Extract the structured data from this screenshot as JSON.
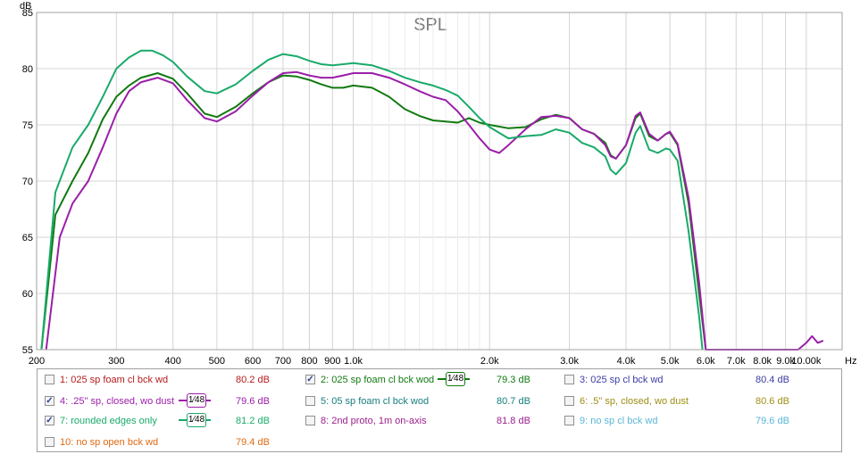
{
  "chart_data": {
    "type": "line",
    "title": "SPL",
    "ylabel": "dB",
    "xlabel": "Hz",
    "x_scale": "log",
    "xlim": [
      200,
      12000
    ],
    "ylim": [
      55,
      85
    ],
    "grid": true,
    "y_ticks": [
      55,
      60,
      65,
      70,
      75,
      80,
      85
    ],
    "x_ticks": [
      {
        "v": 200,
        "label": "200"
      },
      {
        "v": 300,
        "label": "300"
      },
      {
        "v": 400,
        "label": "400"
      },
      {
        "v": 500,
        "label": "500"
      },
      {
        "v": 600,
        "label": "600"
      },
      {
        "v": 700,
        "label": "700"
      },
      {
        "v": 800,
        "label": "800"
      },
      {
        "v": 900,
        "label": "900"
      },
      {
        "v": 1000,
        "label": "1.0k"
      },
      {
        "v": 2000,
        "label": "2.0k"
      },
      {
        "v": 3000,
        "label": "3.0k"
      },
      {
        "v": 4000,
        "label": "4.0k"
      },
      {
        "v": 5000,
        "label": "5.0k"
      },
      {
        "v": 6000,
        "label": "6.0k"
      },
      {
        "v": 7000,
        "label": "7.0k"
      },
      {
        "v": 8000,
        "label": "8.0k"
      },
      {
        "v": 9000,
        "label": "9.0k"
      },
      {
        "v": 10000,
        "label": "10.00k"
      }
    ],
    "series": [
      {
        "name": "2: 025 sp foam cl bck wod",
        "color": "#117a11",
        "x": [
          205,
          220,
          240,
          260,
          280,
          300,
          320,
          340,
          370,
          400,
          430,
          470,
          500,
          550,
          600,
          650,
          700,
          750,
          800,
          850,
          900,
          950,
          1000,
          1100,
          1200,
          1300,
          1400,
          1500,
          1600,
          1700,
          1800,
          1900,
          2000,
          2200,
          2400,
          2600,
          2800,
          3000,
          3200,
          3400,
          3600,
          3700,
          3800,
          4000,
          4200,
          4300,
          4500,
          4700,
          4900,
          5000,
          5200,
          5500,
          5800,
          6000
        ],
        "y": [
          55,
          67,
          70,
          72.5,
          75.5,
          77.5,
          78.5,
          79.2,
          79.6,
          79.1,
          77.8,
          76,
          75.7,
          76.6,
          77.8,
          78.8,
          79.4,
          79.3,
          79,
          78.6,
          78.3,
          78.3,
          78.5,
          78.3,
          77.5,
          76.4,
          75.8,
          75.4,
          75.3,
          75.2,
          75.6,
          75.2,
          75,
          74.7,
          74.8,
          75.5,
          75.9,
          75.6,
          74.6,
          74.2,
          73.4,
          72.3,
          72,
          73.2,
          75.6,
          76,
          74,
          73.6,
          74.2,
          74.3,
          73.2,
          68,
          60,
          55
        ]
      },
      {
        "name": "4: .25\" sp, closed, wo dust",
        "color": "#9b1ea8",
        "x": [
          210,
          225,
          240,
          260,
          280,
          300,
          320,
          340,
          370,
          400,
          430,
          470,
          500,
          550,
          600,
          650,
          700,
          750,
          800,
          850,
          900,
          950,
          1000,
          1100,
          1200,
          1300,
          1400,
          1500,
          1600,
          1700,
          1800,
          1900,
          2000,
          2100,
          2200,
          2400,
          2600,
          2800,
          3000,
          3200,
          3400,
          3600,
          3700,
          3800,
          4000,
          4200,
          4300,
          4500,
          4700,
          4900,
          5000,
          5200,
          5500,
          5800,
          6000,
          9600,
          10000,
          10300,
          10600,
          10900
        ],
        "y": [
          55,
          65,
          68,
          70,
          73,
          76,
          78,
          78.8,
          79.2,
          78.7,
          77.2,
          75.6,
          75.3,
          76.2,
          77.6,
          78.8,
          79.6,
          79.7,
          79.4,
          79.2,
          79.2,
          79.4,
          79.6,
          79.6,
          79.2,
          78.6,
          78,
          77.5,
          77.2,
          76.2,
          75,
          73.8,
          72.8,
          72.5,
          73.2,
          74.6,
          75.7,
          75.8,
          75.6,
          74.6,
          74.2,
          73.2,
          72.2,
          72,
          73.2,
          75.8,
          76.1,
          74.2,
          73.6,
          74.2,
          74.4,
          73.3,
          68.5,
          61,
          55,
          55,
          55.6,
          56.2,
          55.6,
          55.8
        ]
      },
      {
        "name": "7: rounded edges only",
        "color": "#19aa6a",
        "x": [
          205,
          220,
          240,
          260,
          280,
          300,
          320,
          340,
          360,
          380,
          400,
          430,
          470,
          500,
          550,
          600,
          650,
          700,
          750,
          800,
          850,
          900,
          950,
          1000,
          1100,
          1200,
          1300,
          1400,
          1500,
          1600,
          1700,
          1800,
          1900,
          2000,
          2200,
          2400,
          2600,
          2800,
          3000,
          3200,
          3400,
          3600,
          3700,
          3800,
          4000,
          4200,
          4300,
          4500,
          4700,
          4900,
          5000,
          5200,
          5500,
          5800,
          5900
        ],
        "y": [
          55,
          69,
          73,
          75,
          77.5,
          80,
          81,
          81.6,
          81.6,
          81.2,
          80.6,
          79.3,
          78,
          77.8,
          78.6,
          79.8,
          80.8,
          81.3,
          81.1,
          80.7,
          80.4,
          80.3,
          80.4,
          80.5,
          80.3,
          79.8,
          79.2,
          78.8,
          78.5,
          78.1,
          77.6,
          76.6,
          75.6,
          74.8,
          73.8,
          74,
          74.1,
          74.6,
          74.3,
          73.4,
          73,
          72.2,
          71,
          70.6,
          71.6,
          74.3,
          74.9,
          72.8,
          72.5,
          72.9,
          72.8,
          71.8,
          65.5,
          58,
          55
        ]
      }
    ]
  },
  "legend": {
    "items": [
      {
        "label": "1: 025 sp foam cl bck wd",
        "value": "80.2 dB",
        "color": "#b71b1b",
        "checked": false,
        "smooth": ""
      },
      {
        "label": "2: 025 sp foam cl bck wod",
        "value": "79.3 dB",
        "color": "#117a11",
        "checked": true,
        "smooth": "1⁄48"
      },
      {
        "label": "3: 025 sp cl bck wd",
        "value": "80.4 dB",
        "color": "#3c3ca6",
        "checked": false,
        "smooth": ""
      },
      {
        "label": "4: .25\" sp, closed, wo dust",
        "value": "79.6 dB",
        "color": "#9b1ea8",
        "checked": true,
        "smooth": "1⁄48"
      },
      {
        "label": "5: 05 sp foam cl bck wod",
        "value": "80.7 dB",
        "color": "#177e7e",
        "checked": false,
        "smooth": ""
      },
      {
        "label": "6: .5\" sp, closed, wo dust",
        "value": "80.6 dB",
        "color": "#9e8e12",
        "checked": false,
        "smooth": ""
      },
      {
        "label": "7: rounded edges only",
        "value": "81.2 dB",
        "color": "#19aa6a",
        "checked": true,
        "smooth": "1⁄48"
      },
      {
        "label": "8: 2nd proto, 1m on-axis",
        "value": "81.8 dB",
        "color": "#9b1e8c",
        "checked": false,
        "smooth": ""
      },
      {
        "label": "9: no sp cl bck wd",
        "value": "79.6 dB",
        "color": "#5ab6d8",
        "checked": false,
        "smooth": ""
      },
      {
        "label": "10: no sp open bck wd",
        "value": "79.4 dB",
        "color": "#e06a12",
        "checked": false,
        "smooth": ""
      }
    ]
  }
}
